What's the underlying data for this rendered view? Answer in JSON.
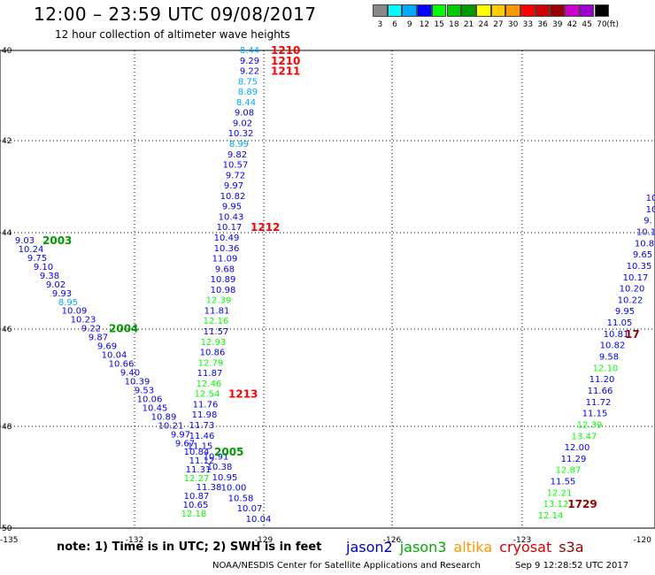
{
  "title": "12:00 – 23:59 UTC 09/08/2017",
  "subtitle": "12 hour collection of altimeter wave heights",
  "note": "note:  1) Time is in UTC; 2) SWH is in feet",
  "credit": "NOAA/NESDIS Center for Satellite Applications and Research",
  "timestamp": "Sep  9 12:28:52 UTC 2017",
  "satellites": [
    {
      "name": "jason2",
      "color": "#0000cc"
    },
    {
      "name": "jason3",
      "color": "#00aa00"
    },
    {
      "name": "altika",
      "color": "#ff9900"
    },
    {
      "name": "cryosat",
      "color": "#dd0000"
    },
    {
      "name": "s3a",
      "color": "#990000"
    }
  ],
  "scale": {
    "unit": "(ft)",
    "colors": [
      "#888888",
      "#00ffff",
      "#00aaff",
      "#0000ff",
      "#00ff00",
      "#00cc00",
      "#009900",
      "#ffff00",
      "#ffcc00",
      "#ff9900",
      "#ff0000",
      "#cc0000",
      "#990000",
      "#cc00cc",
      "#9900cc",
      "#000000"
    ],
    "labels": [
      "3",
      "6",
      "9",
      "12",
      "15",
      "18",
      "21",
      "24",
      "27",
      "30",
      "33",
      "36",
      "39",
      "42",
      "45",
      "70"
    ]
  },
  "axes": {
    "lon_ticks": [
      "-135",
      "-132",
      "-129",
      "-126",
      "-123",
      "-120"
    ],
    "lat_ticks": [
      "40",
      "42",
      "44",
      "46",
      "48",
      "50"
    ]
  },
  "tracks": [
    {
      "name": "track-1210-1213",
      "points": [
        {
          "v": "8.44",
          "c": "#00aaff"
        },
        {
          "v": "9.29",
          "c": "#0000ff"
        },
        {
          "v": "9.22",
          "c": "#0000ff"
        },
        {
          "v": "8.75",
          "c": "#00aaff"
        },
        {
          "v": "8.89",
          "c": "#00aaff"
        },
        {
          "v": "8.44",
          "c": "#00aaff"
        },
        {
          "v": "9.08",
          "c": "#0000ff"
        },
        {
          "v": "9.02",
          "c": "#0000ff"
        },
        {
          "v": "10.32",
          "c": "#0000ff"
        },
        {
          "v": "8.99",
          "c": "#00aaff"
        },
        {
          "v": "9.82",
          "c": "#0000ff"
        },
        {
          "v": "10.57",
          "c": "#0000ff"
        },
        {
          "v": "9.72",
          "c": "#0000ff"
        },
        {
          "v": "9.97",
          "c": "#0000ff"
        },
        {
          "v": "10.82",
          "c": "#0000ff"
        },
        {
          "v": "9.95",
          "c": "#0000ff"
        },
        {
          "v": "10.43",
          "c": "#0000ff"
        },
        {
          "v": "10.17",
          "c": "#0000ff"
        },
        {
          "v": "10.49",
          "c": "#0000ff"
        },
        {
          "v": "10.36",
          "c": "#0000ff"
        },
        {
          "v": "11.09",
          "c": "#0000ff"
        },
        {
          "v": "9.68",
          "c": "#0000ff"
        },
        {
          "v": "10.89",
          "c": "#0000ff"
        },
        {
          "v": "10.98",
          "c": "#0000ff"
        },
        {
          "v": "12.39",
          "c": "#00ff00"
        },
        {
          "v": "11.81",
          "c": "#0000ff"
        },
        {
          "v": "12.16",
          "c": "#00ff00"
        },
        {
          "v": "11.57",
          "c": "#0000ff"
        },
        {
          "v": "12.93",
          "c": "#00ff00"
        },
        {
          "v": "10.86",
          "c": "#0000ff"
        },
        {
          "v": "12.79",
          "c": "#00ff00"
        },
        {
          "v": "11.87",
          "c": "#0000ff"
        },
        {
          "v": "12.46",
          "c": "#00ff00"
        },
        {
          "v": "12.54",
          "c": "#00ff00"
        },
        {
          "v": "11.76",
          "c": "#0000ff"
        },
        {
          "v": "11.98",
          "c": "#0000ff"
        },
        {
          "v": "11.73",
          "c": "#0000ff"
        },
        {
          "v": "11.46",
          "c": "#0000ff"
        },
        {
          "v": "11.15",
          "c": "#0000ff"
        },
        {
          "v": "10.91",
          "c": "#0000ff"
        },
        {
          "v": "10.38",
          "c": "#0000ff"
        },
        {
          "v": "10.95",
          "c": "#0000ff"
        },
        {
          "v": "10.00",
          "c": "#0000ff"
        },
        {
          "v": "10.58",
          "c": "#0000ff"
        },
        {
          "v": "10.07",
          "c": "#0000ff"
        },
        {
          "v": "10.04",
          "c": "#0000ff"
        }
      ],
      "times": [
        {
          "t": "1210",
          "i": 0,
          "c": "#ff0000"
        },
        {
          "t": "1210",
          "i": 1,
          "c": "#ff0000"
        },
        {
          "t": "1211",
          "i": 2,
          "c": "#ff0000"
        },
        {
          "t": "1212",
          "i": 17,
          "c": "#ff0000"
        },
        {
          "t": "1213",
          "i": 33,
          "c": "#ff0000"
        }
      ]
    },
    {
      "name": "track-2003-2005",
      "points": [
        {
          "v": "9.03",
          "c": "#0000ff"
        },
        {
          "v": "10.24",
          "c": "#0000ff"
        },
        {
          "v": "9.75",
          "c": "#0000ff"
        },
        {
          "v": "9.10",
          "c": "#0000ff"
        },
        {
          "v": "9.38",
          "c": "#0000ff"
        },
        {
          "v": "9.02",
          "c": "#0000ff"
        },
        {
          "v": "9.93",
          "c": "#0000ff"
        },
        {
          "v": "8.95",
          "c": "#00aaff"
        },
        {
          "v": "10.09",
          "c": "#0000ff"
        },
        {
          "v": "10.23",
          "c": "#0000ff"
        },
        {
          "v": "9.22",
          "c": "#0000ff"
        },
        {
          "v": "9.87",
          "c": "#0000ff"
        },
        {
          "v": "9.69",
          "c": "#0000ff"
        },
        {
          "v": "10.04",
          "c": "#0000ff"
        },
        {
          "v": "10.66",
          "c": "#0000ff"
        },
        {
          "v": "9.40",
          "c": "#0000ff"
        },
        {
          "v": "10.39",
          "c": "#0000ff"
        },
        {
          "v": "9.53",
          "c": "#0000ff"
        },
        {
          "v": "10.06",
          "c": "#0000ff"
        },
        {
          "v": "10.45",
          "c": "#0000ff"
        },
        {
          "v": "10.89",
          "c": "#0000ff"
        },
        {
          "v": "10.21",
          "c": "#0000ff"
        },
        {
          "v": "9.97",
          "c": "#0000ff"
        },
        {
          "v": "9.67",
          "c": "#0000ff"
        },
        {
          "v": "10.84",
          "c": "#0000ff"
        },
        {
          "v": "11.12",
          "c": "#0000ff"
        },
        {
          "v": "11.31",
          "c": "#0000ff"
        },
        {
          "v": "12.27",
          "c": "#00ff00"
        },
        {
          "v": "11.38",
          "c": "#0000ff"
        },
        {
          "v": "10.87",
          "c": "#0000ff"
        },
        {
          "v": "10.65",
          "c": "#0000ff"
        },
        {
          "v": "12.18",
          "c": "#00ff00"
        }
      ],
      "times": [
        {
          "t": "2003",
          "i": 0,
          "c": "#009900"
        },
        {
          "t": "2004",
          "i": 10,
          "c": "#009900"
        },
        {
          "t": "2005",
          "i": 24,
          "c": "#009900"
        }
      ]
    },
    {
      "name": "track-1729",
      "points": [
        {
          "v": "10",
          "c": "#0000ff"
        },
        {
          "v": "10",
          "c": "#0000ff"
        },
        {
          "v": "9.",
          "c": "#0000ff"
        },
        {
          "v": "10.1",
          "c": "#0000ff"
        },
        {
          "v": "10.8",
          "c": "#0000ff"
        },
        {
          "v": "9.65",
          "c": "#0000ff"
        },
        {
          "v": "10.35",
          "c": "#0000ff"
        },
        {
          "v": "10.17",
          "c": "#0000ff"
        },
        {
          "v": "10.20",
          "c": "#0000ff"
        },
        {
          "v": "10.22",
          "c": "#0000ff"
        },
        {
          "v": "9.95",
          "c": "#0000ff"
        },
        {
          "v": "11.05",
          "c": "#0000ff"
        },
        {
          "v": "10.81",
          "c": "#0000ff"
        },
        {
          "v": "10.82",
          "c": "#0000ff"
        },
        {
          "v": "9.58",
          "c": "#0000ff"
        },
        {
          "v": "12.10",
          "c": "#00ff00"
        },
        {
          "v": "11.20",
          "c": "#0000ff"
        },
        {
          "v": "11.66",
          "c": "#0000ff"
        },
        {
          "v": "11.72",
          "c": "#0000ff"
        },
        {
          "v": "11.15",
          "c": "#0000ff"
        },
        {
          "v": "12.39",
          "c": "#00ff00"
        },
        {
          "v": "13.47",
          "c": "#00ff00"
        },
        {
          "v": "12.00",
          "c": "#0000ff"
        },
        {
          "v": "11.29",
          "c": "#0000ff"
        },
        {
          "v": "12.87",
          "c": "#00ff00"
        },
        {
          "v": "11.55",
          "c": "#0000ff"
        },
        {
          "v": "12.21",
          "c": "#00ff00"
        },
        {
          "v": "13.12",
          "c": "#00ff00"
        },
        {
          "v": "12.14",
          "c": "#00ff00"
        }
      ],
      "times": [
        {
          "t": "17",
          "i": 12,
          "c": "#990000"
        },
        {
          "t": "1729",
          "i": 27,
          "c": "#990000"
        }
      ]
    }
  ]
}
